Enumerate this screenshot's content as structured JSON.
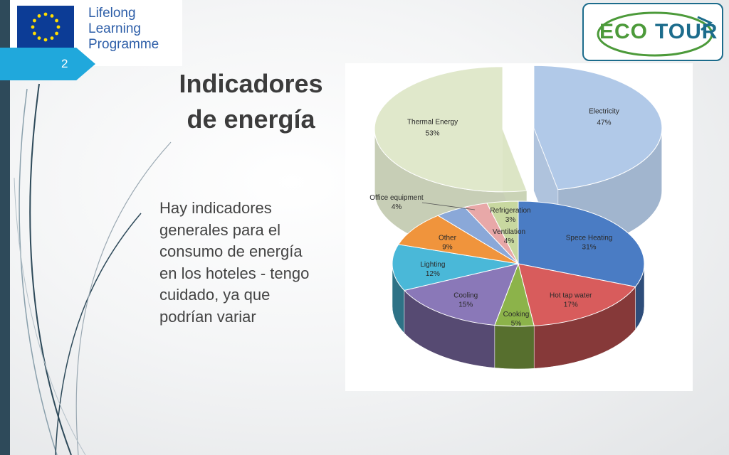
{
  "slide": {
    "number": "2",
    "title_line1": "Indicadores",
    "title_line2": "de energía",
    "body": "Hay indicadores\ngenerales para el\nconsumo de energía\nen los hoteles - tengo\ncuidado, ya que\npodrían variar"
  },
  "logos": {
    "llp_line1": "Lifelong",
    "llp_line2": "Learning",
    "llp_line3": "Programme",
    "eco_part1": "ECO",
    "eco_part2": "TOUR"
  },
  "colors": {
    "tab": "#20a8dc",
    "left_bar": "#2e4a5a",
    "eco_green": "#4c9a3a",
    "eco_blue": "#1c6c8c",
    "electricity": "#a9c4e6",
    "thermal": "#dde6c6"
  },
  "chart_data": [
    {
      "type": "pie",
      "categories": [
        "Electricity",
        "Thermal Energy"
      ],
      "values": [
        47,
        53
      ],
      "labels": [
        "47%",
        "53%"
      ]
    },
    {
      "type": "pie",
      "categories": [
        "Spece Heating",
        "Hot tap water",
        "Cooking",
        "Cooling",
        "Lighting",
        "Other",
        "Office equipment",
        "Refrigeration",
        "Ventilation"
      ],
      "values": [
        31,
        17,
        5,
        15,
        12,
        9,
        4,
        3,
        4
      ],
      "labels": [
        "31%",
        "17%",
        "5%",
        "15%",
        "12%",
        "9%",
        "4%",
        "3%",
        "4%"
      ],
      "colors": [
        "#4a7cc4",
        "#d85c5c",
        "#8cb34a",
        "#8a78b8",
        "#4ab8d8",
        "#f0943c",
        "#8aa8d8",
        "#e8a8a8",
        "#c8d8a0"
      ]
    }
  ]
}
